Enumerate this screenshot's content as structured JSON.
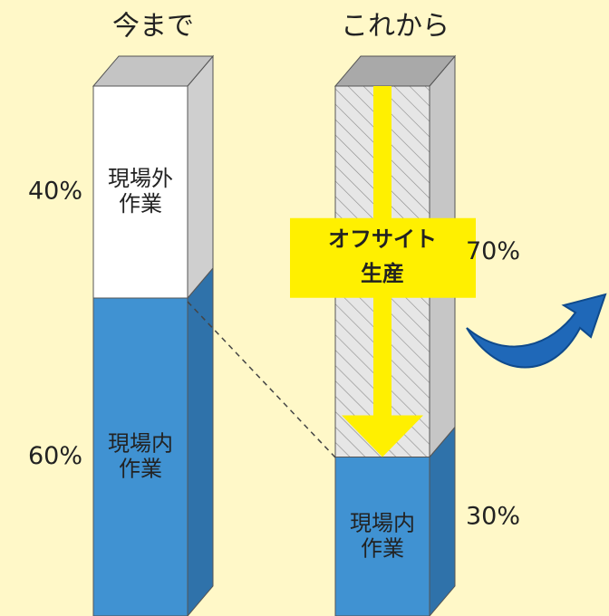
{
  "chart_data": {
    "type": "stacked-3d-bar",
    "ylim": [
      0,
      100
    ],
    "bars": [
      {
        "category": "今まで",
        "segments": [
          {
            "label": [
              "現場内",
              "作業"
            ],
            "value": 60,
            "value_label": "60%",
            "color": "#4092d2",
            "side_color": "#2f72aa",
            "text_color": "#ffffff"
          },
          {
            "label": [
              "現場外",
              "作業"
            ],
            "value": 40,
            "value_label": "40%",
            "color": "#ffffff",
            "side_color": "#cfcfcf",
            "top_color": "#c4c4c4",
            "text_color": "#222222"
          }
        ]
      },
      {
        "category": "これから",
        "segments": [
          {
            "label": [
              "現場内",
              "作業"
            ],
            "value": 30,
            "value_label": "30%",
            "color": "#4092d2",
            "side_color": "#2f72aa",
            "text_color": "#ffffff"
          },
          {
            "label": [
              "オフサイト",
              "生産"
            ],
            "value": 70,
            "value_label": "70%",
            "color": "#e6e6e6",
            "side_color": "#c6c6c6",
            "top_color": "#a9a9a9",
            "text_color": "#111111",
            "hatched": true,
            "label_bg": "#fff000"
          }
        ]
      }
    ]
  }
}
